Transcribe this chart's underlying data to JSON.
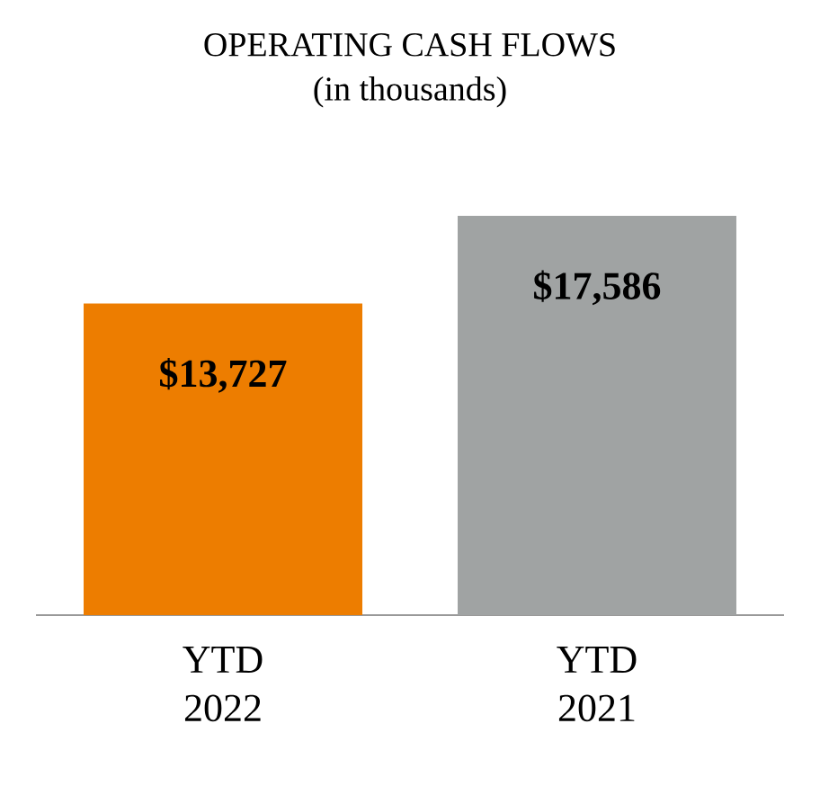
{
  "chart_data": {
    "type": "bar",
    "title": "OPERATING CASH FLOWS",
    "subtitle": "(in thousands)",
    "categories": [
      "YTD 2022",
      "YTD 2021"
    ],
    "values": [
      13727,
      17586
    ],
    "colors": [
      "#ed7d00",
      "#a0a3a3"
    ],
    "value_labels": [
      "$13,727",
      "$17,586"
    ],
    "grid": false,
    "tick_labels": "x"
  }
}
